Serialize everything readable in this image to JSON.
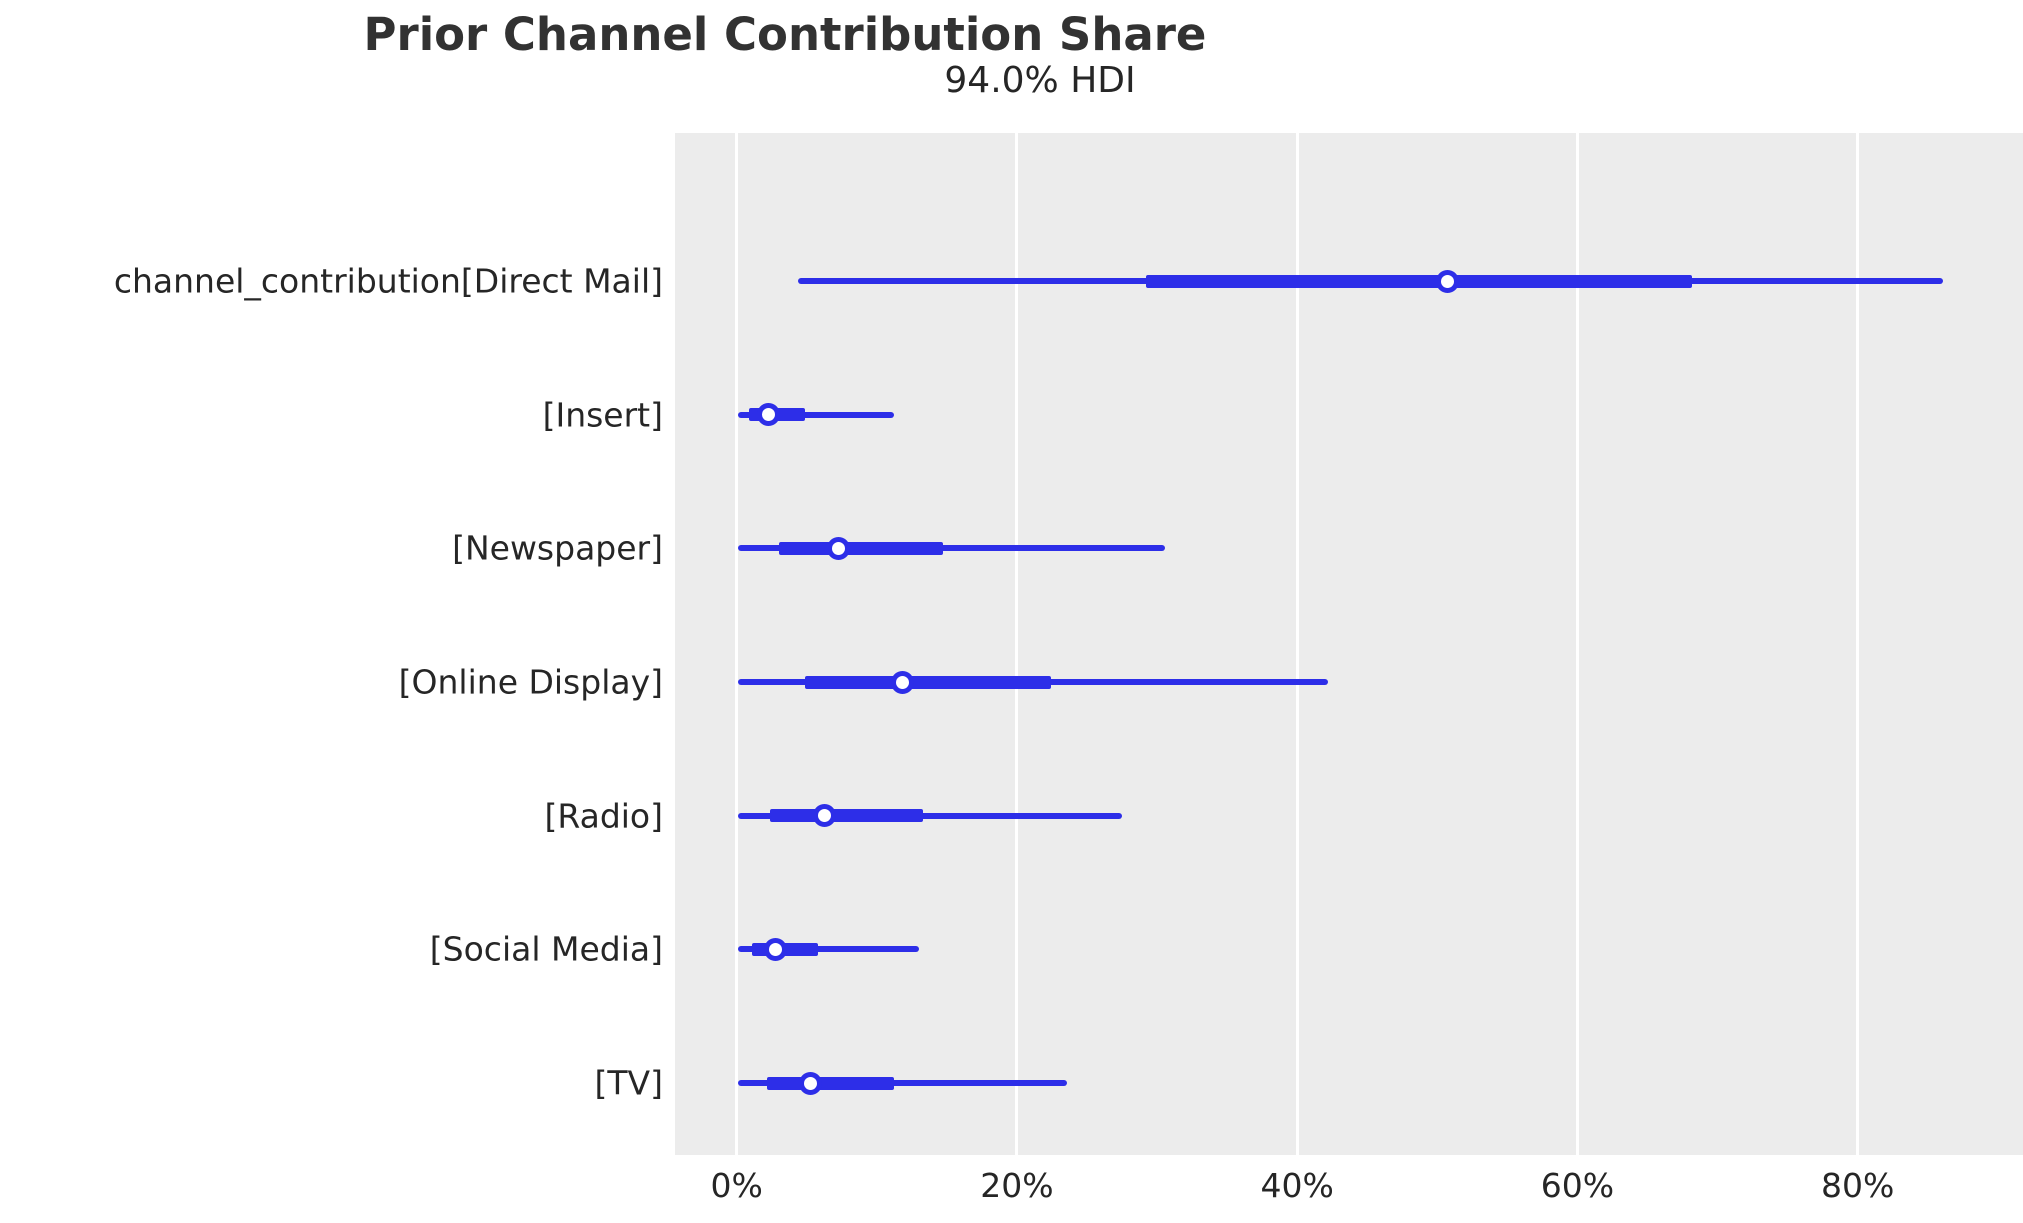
{
  "title": "Prior Channel Contribution Share",
  "subtitle": "94.0% HDI",
  "chart_data": {
    "type": "forest",
    "title": "Prior Channel Contribution Share",
    "subtitle": "94.0% HDI",
    "hdi_probability": "94.0%",
    "variable_name": "channel_contribution",
    "unit": "percent",
    "xlabel": "",
    "ylabel": "",
    "xlim": [
      -4.4,
      91.8
    ],
    "x_tick_labels": [
      "0%",
      "20%",
      "40%",
      "60%",
      "80%"
    ],
    "x_tick_values": [
      0,
      20,
      40,
      60,
      80
    ],
    "grid": "vertical-white-on-gray",
    "legend": "none",
    "marker": "open-circle-median",
    "colors": {
      "line": "#2d2ee8",
      "plot_background": "#ececec",
      "gridline": "#ffffff",
      "text": "#262626",
      "title_text": "#323232",
      "marker_fill": "#ffffff",
      "figure_background": "#ffffff"
    },
    "series": [
      {
        "label": "channel_contribution[Direct Mail]",
        "hdi_low": 4.4,
        "q25": 29.2,
        "median": 50.7,
        "q75": 68.2,
        "hdi_high": 86.1
      },
      {
        "label": "[Insert]",
        "hdi_low": 0.1,
        "q25": 0.9,
        "median": 2.3,
        "q75": 4.9,
        "hdi_high": 11.2
      },
      {
        "label": "[Newspaper]",
        "hdi_low": 0.1,
        "q25": 3.0,
        "median": 7.3,
        "q75": 14.7,
        "hdi_high": 30.6
      },
      {
        "label": "[Online Display]",
        "hdi_low": 0.1,
        "q25": 4.9,
        "median": 11.8,
        "q75": 22.4,
        "hdi_high": 42.2
      },
      {
        "label": "[Radio]",
        "hdi_low": 0.1,
        "q25": 2.4,
        "median": 6.3,
        "q75": 13.3,
        "hdi_high": 27.5
      },
      {
        "label": "[Social Media]",
        "hdi_low": 0.1,
        "q25": 1.1,
        "median": 2.8,
        "q75": 5.8,
        "hdi_high": 13.0
      },
      {
        "label": "[TV]",
        "hdi_low": 0.1,
        "q25": 2.2,
        "median": 5.3,
        "q75": 11.2,
        "hdi_high": 23.6
      }
    ]
  }
}
